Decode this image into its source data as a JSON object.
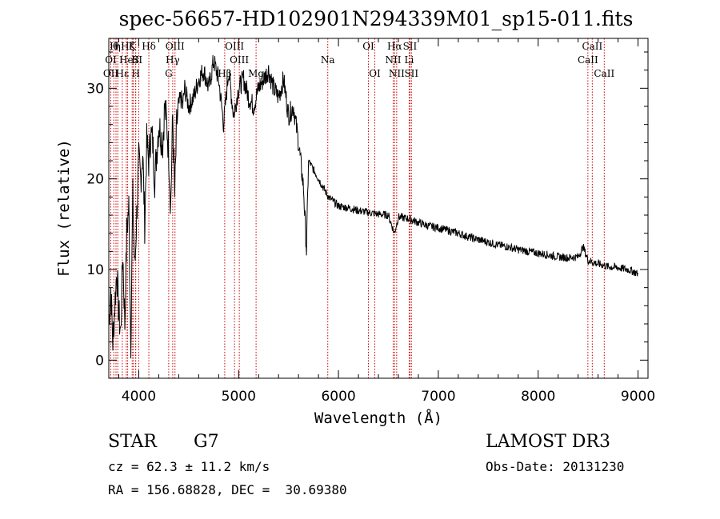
{
  "chart_data": {
    "type": "line",
    "title": "spec-56657-HD102901N294339M01_sp15-011.fits",
    "xlabel": "Wavelength (Å)",
    "ylabel": "Flux (relative)",
    "xlim": [
      3700,
      9100
    ],
    "ylim": [
      -2,
      35.5
    ],
    "x_ticks": [
      4000,
      5000,
      6000,
      7000,
      8000,
      9000
    ],
    "y_ticks": [
      0,
      10,
      20,
      30
    ],
    "grid": false,
    "line_color": "#000000",
    "marker_color": "#cc0000",
    "series": [
      {
        "x": [
          3700,
          3720,
          3740,
          3760,
          3780,
          3800,
          3820,
          3840,
          3860,
          3880,
          3900,
          3920,
          3940,
          3960,
          3980,
          4000,
          4020,
          4040,
          4060,
          4080,
          4100,
          4120,
          4140,
          4160,
          4180,
          4200,
          4220,
          4240,
          4260,
          4280,
          4300,
          4320,
          4340,
          4360,
          4380,
          4400,
          4420,
          4440,
          4460,
          4480,
          4500,
          4550,
          4600,
          4650,
          4700,
          4750,
          4800,
          4850,
          4900,
          4950,
          5000,
          5050,
          5100,
          5150,
          5200,
          5250,
          5300,
          5350,
          5400,
          5450,
          5500,
          5550,
          5600,
          5650,
          5680,
          5700,
          5750,
          5800,
          5850,
          5900,
          5950,
          6000,
          6100,
          6200,
          6300,
          6400,
          6500,
          6560,
          6600,
          6700,
          6800,
          6900,
          7000,
          7100,
          7200,
          7300,
          7400,
          7500,
          7600,
          7700,
          7800,
          7900,
          8000,
          8100,
          8200,
          8300,
          8400,
          8450,
          8500,
          8550,
          8600,
          8650,
          8700,
          8800,
          8900,
          8950,
          9000
        ],
        "y": [
          4,
          8,
          2,
          6,
          10,
          5,
          3,
          12,
          4,
          14,
          17,
          2,
          18,
          10,
          16,
          22,
          20,
          23,
          15,
          24,
          22,
          25,
          24,
          20,
          23,
          26,
          25,
          24,
          28,
          26,
          23,
          17,
          27,
          18,
          26,
          28,
          29,
          28,
          30,
          29,
          28,
          29,
          31,
          32,
          30,
          33,
          31,
          26,
          32,
          27,
          30,
          31,
          29,
          28,
          30,
          31,
          32,
          30,
          29,
          31,
          27,
          28,
          24,
          19,
          12,
          22,
          21,
          20,
          19,
          18,
          17.5,
          17,
          16.8,
          16.5,
          16.3,
          16.1,
          16,
          14,
          15.8,
          15.6,
          15.2,
          14.8,
          14.6,
          14.3,
          14,
          13.6,
          13.3,
          13,
          12.7,
          12.5,
          12.2,
          12,
          11.8,
          11.6,
          11.4,
          11.3,
          11.4,
          12.5,
          11,
          10.8,
          10.6,
          10.5,
          10.3,
          10.2,
          10,
          9.8,
          9.5
        ]
      }
    ],
    "lines": [
      {
        "wl": 3720,
        "labels": [
          {
            "text": "OI",
            "row": 2
          },
          {
            "text": "OII",
            "row": 3
          }
        ]
      },
      {
        "wl": 3750,
        "labels": [
          {
            "text": "H",
            "row": 1
          }
        ]
      },
      {
        "wl": 3772,
        "labels": [
          {
            "text": "θ",
            "row": 1
          }
        ]
      },
      {
        "wl": 3790,
        "labels": [
          {
            "text": "η",
            "row": 1
          }
        ]
      },
      {
        "wl": 3835,
        "labels": [
          {
            "text": "Hε",
            "row": 3
          }
        ]
      },
      {
        "wl": 3875,
        "labels": [
          {
            "text": "He",
            "row": 2
          }
        ]
      },
      {
        "wl": 3889,
        "labels": [
          {
            "text": "Hζ",
            "row": 1
          }
        ]
      },
      {
        "wl": 3934,
        "labels": [
          {
            "text": "K",
            "row": 1
          }
        ]
      },
      {
        "wl": 3945,
        "labels": [
          {
            "text": "I",
            "row": 2
          }
        ]
      },
      {
        "wl": 3968,
        "labels": [
          {
            "text": "S",
            "row": 2
          }
        ]
      },
      {
        "wl": 3970,
        "labels": [
          {
            "text": "H",
            "row": 3
          }
        ]
      },
      {
        "wl": 4000,
        "labels": [
          {
            "text": "II",
            "row": 2
          }
        ]
      },
      {
        "wl": 4101,
        "labels": [
          {
            "text": "Hδ",
            "row": 1
          }
        ]
      },
      {
        "wl": 4300,
        "labels": [
          {
            "text": "G",
            "row": 3
          }
        ]
      },
      {
        "wl": 4340,
        "labels": [
          {
            "text": "Hγ",
            "row": 2
          }
        ]
      },
      {
        "wl": 4363,
        "labels": [
          {
            "text": "OIII",
            "row": 1
          }
        ]
      },
      {
        "wl": 4861,
        "labels": [
          {
            "text": "Hβ",
            "row": 3
          }
        ]
      },
      {
        "wl": 4959,
        "labels": [
          {
            "text": "OIII",
            "row": 1
          }
        ]
      },
      {
        "wl": 5007,
        "labels": [
          {
            "text": "OIII",
            "row": 2
          }
        ]
      },
      {
        "wl": 5175,
        "labels": [
          {
            "text": "Mg",
            "row": 3
          }
        ]
      },
      {
        "wl": 5893,
        "labels": [
          {
            "text": "Na",
            "row": 2
          }
        ]
      },
      {
        "wl": 6300,
        "labels": [
          {
            "text": "OI",
            "row": 1
          }
        ]
      },
      {
        "wl": 6364,
        "labels": [
          {
            "text": "OI",
            "row": 3
          }
        ]
      },
      {
        "wl": 6548,
        "labels": [
          {
            "text": "NII",
            "row": 2
          }
        ]
      },
      {
        "wl": 6563,
        "labels": [
          {
            "text": "Hα",
            "row": 1
          }
        ]
      },
      {
        "wl": 6583,
        "labels": [
          {
            "text": "NII",
            "row": 3
          }
        ]
      },
      {
        "wl": 6708,
        "labels": [
          {
            "text": "Li",
            "row": 2
          }
        ]
      },
      {
        "wl": 6716,
        "labels": [
          {
            "text": "SII",
            "row": 1
          }
        ]
      },
      {
        "wl": 6731,
        "labels": [
          {
            "text": "SII",
            "row": 3
          }
        ]
      },
      {
        "wl": 8498,
        "labels": [
          {
            "text": "CaII",
            "row": 2
          }
        ]
      },
      {
        "wl": 8542,
        "labels": [
          {
            "text": "CaII",
            "row": 1
          }
        ]
      },
      {
        "wl": 8662,
        "labels": [
          {
            "text": "CaII",
            "row": 3
          }
        ]
      }
    ]
  },
  "info": {
    "object_class": "STAR",
    "subclass": "G7",
    "survey": "LAMOST DR3",
    "cz": "cz = 62.3 ± 11.2 km/s",
    "obs_date": "Obs-Date: 20131230",
    "coords": "RA = 156.68828, DEC =  30.69380"
  }
}
